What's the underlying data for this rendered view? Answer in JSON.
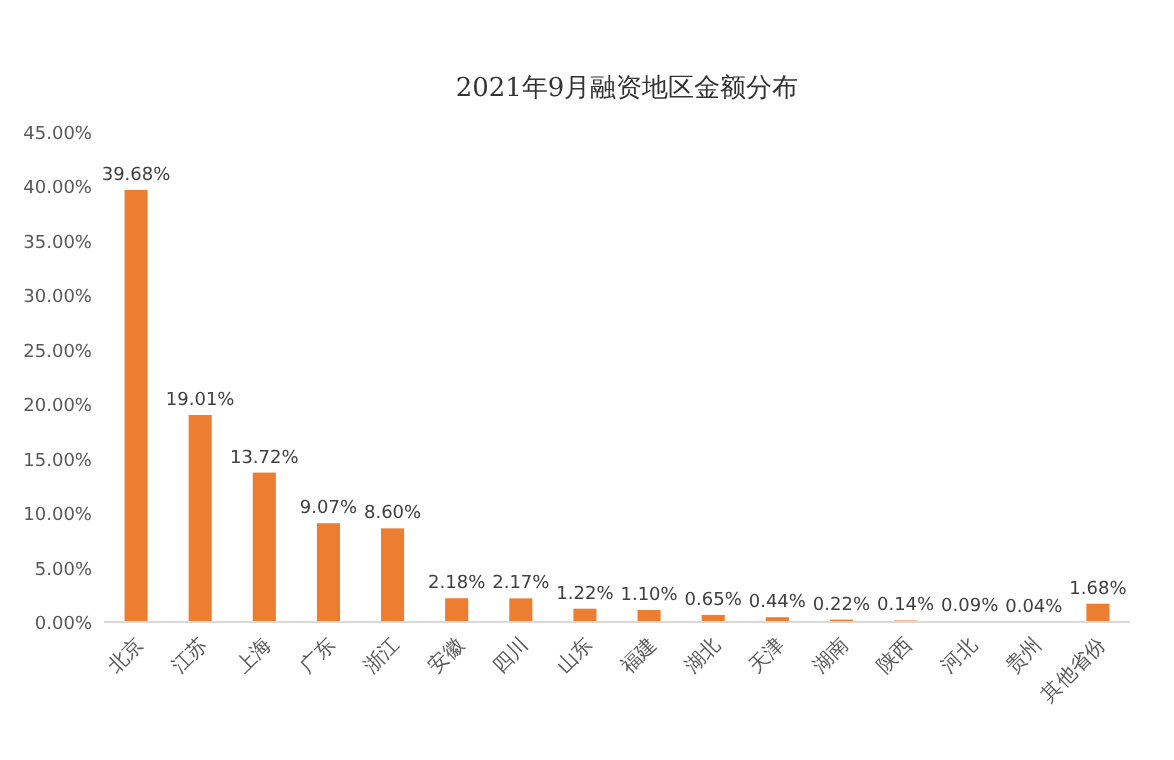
{
  "chart_data": {
    "type": "bar",
    "title": "2021年9月融资地区金额分布",
    "categories": [
      "北京",
      "江苏",
      "上海",
      "广东",
      "浙江",
      "安徽",
      "四川",
      "山东",
      "福建",
      "湖北",
      "天津",
      "湖南",
      "陕西",
      "河北",
      "贵州",
      "其他省份"
    ],
    "values": [
      39.68,
      19.01,
      13.72,
      9.07,
      8.6,
      2.18,
      2.17,
      1.22,
      1.1,
      0.65,
      0.44,
      0.22,
      0.14,
      0.09,
      0.04,
      1.68
    ],
    "value_labels": [
      "39.68%",
      "19.01%",
      "13.72%",
      "9.07%",
      "8.60%",
      "2.18%",
      "2.17%",
      "1.22%",
      "1.10%",
      "0.65%",
      "0.44%",
      "0.22%",
      "0.14%",
      "0.09%",
      "0.04%",
      "1.68%"
    ],
    "color": "#ed7d31",
    "ylim": [
      0,
      45
    ],
    "yticks": [
      {
        "value": 0,
        "label": "0.00%"
      },
      {
        "value": 5,
        "label": "5.00%"
      },
      {
        "value": 10,
        "label": "10.00%"
      },
      {
        "value": 15,
        "label": "15.00%"
      },
      {
        "value": 20,
        "label": "20.00%"
      },
      {
        "value": 25,
        "label": "25.00%"
      },
      {
        "value": 30,
        "label": "30.00%"
      },
      {
        "value": 35,
        "label": "35.00%"
      },
      {
        "value": 40,
        "label": "40.00%"
      },
      {
        "value": 45,
        "label": "45.00%"
      }
    ]
  }
}
